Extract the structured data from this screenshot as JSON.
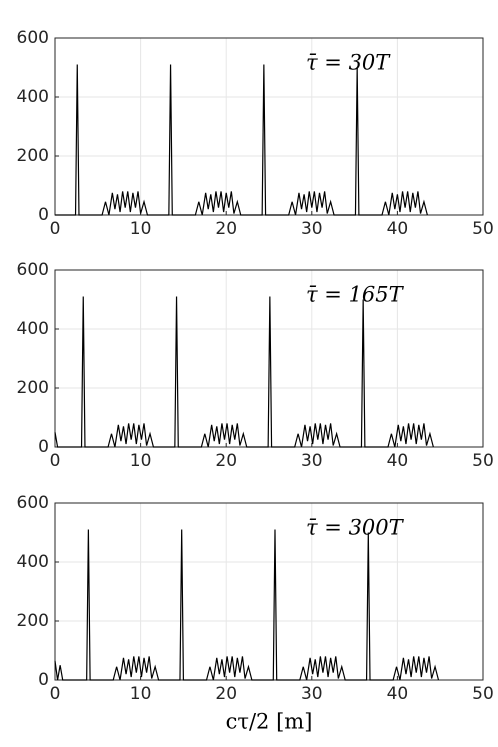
{
  "chart_data": [
    {
      "type": "line",
      "annotation": "τ̄ = 30T",
      "x": [
        0,
        2.4,
        2.6,
        2.8,
        5.5,
        5.9,
        6.3,
        6.7,
        7.0,
        7.3,
        7.6,
        7.9,
        8.2,
        8.5,
        8.8,
        9.1,
        9.4,
        9.7,
        10.0,
        10.4,
        10.8,
        13.3,
        13.5,
        13.7,
        16.4,
        16.8,
        17.2,
        17.6,
        17.9,
        18.2,
        18.5,
        18.8,
        19.1,
        19.4,
        19.7,
        20.0,
        20.3,
        20.6,
        20.9,
        21.3,
        21.7,
        24.2,
        24.4,
        24.6,
        27.3,
        27.7,
        28.1,
        28.5,
        28.8,
        29.1,
        29.4,
        29.7,
        30.0,
        30.3,
        30.6,
        30.9,
        31.2,
        31.5,
        31.8,
        32.2,
        32.6,
        35.1,
        35.3,
        35.5,
        38.2,
        38.6,
        39.0,
        39.4,
        39.7,
        40.0,
        40.3,
        40.6,
        40.9,
        41.2,
        41.5,
        41.8,
        42.1,
        42.4,
        42.7,
        43.1,
        43.5
      ],
      "values": [
        0,
        0,
        510,
        0,
        0,
        45,
        0,
        75,
        20,
        70,
        10,
        80,
        25,
        80,
        10,
        75,
        25,
        80,
        5,
        45,
        0,
        0,
        510,
        0,
        0,
        45,
        0,
        75,
        20,
        70,
        10,
        80,
        25,
        80,
        10,
        75,
        25,
        80,
        5,
        45,
        0,
        0,
        510,
        0,
        0,
        45,
        0,
        75,
        20,
        70,
        10,
        80,
        25,
        80,
        10,
        75,
        25,
        80,
        5,
        45,
        0,
        0,
        500,
        0,
        0,
        45,
        0,
        75,
        20,
        70,
        10,
        80,
        25,
        80,
        10,
        75,
        25,
        80,
        5,
        45,
        0
      ],
      "color": "#000000",
      "xlim": [
        0,
        50
      ],
      "ylim": [
        0,
        600
      ],
      "xticks": [
        0,
        10,
        20,
        30,
        40,
        50
      ],
      "yticks": [
        0,
        200,
        400,
        600
      ],
      "grid": true
    },
    {
      "type": "line",
      "annotation": "τ̄ = 165T",
      "x": [
        0,
        0.3,
        3.1,
        3.3,
        3.5,
        6.2,
        6.6,
        7.0,
        7.4,
        7.7,
        8.0,
        8.3,
        8.6,
        8.9,
        9.2,
        9.5,
        9.8,
        10.1,
        10.4,
        10.7,
        11.1,
        11.5,
        14.0,
        14.2,
        14.4,
        17.1,
        17.5,
        17.9,
        18.3,
        18.6,
        18.9,
        19.2,
        19.5,
        19.8,
        20.1,
        20.4,
        20.7,
        21.0,
        21.3,
        21.6,
        22.0,
        22.4,
        24.9,
        25.1,
        25.3,
        28.0,
        28.4,
        28.8,
        29.2,
        29.5,
        29.8,
        30.1,
        30.4,
        30.7,
        31.0,
        31.3,
        31.6,
        31.9,
        32.2,
        32.5,
        32.9,
        33.3,
        35.8,
        36.0,
        36.2,
        38.9,
        39.3,
        39.7,
        40.1,
        40.4,
        40.7,
        41.0,
        41.3,
        41.6,
        41.9,
        42.2,
        42.5,
        42.8,
        43.1,
        43.4,
        43.8,
        44.2
      ],
      "values": [
        50,
        0,
        0,
        510,
        0,
        0,
        45,
        0,
        75,
        20,
        70,
        10,
        80,
        25,
        80,
        10,
        75,
        25,
        80,
        5,
        45,
        0,
        0,
        510,
        0,
        0,
        45,
        0,
        75,
        20,
        70,
        10,
        80,
        25,
        80,
        10,
        75,
        25,
        80,
        5,
        45,
        0,
        0,
        510,
        0,
        0,
        45,
        0,
        75,
        20,
        70,
        10,
        80,
        25,
        80,
        10,
        75,
        25,
        80,
        5,
        45,
        0,
        0,
        500,
        0,
        0,
        45,
        0,
        75,
        20,
        70,
        10,
        80,
        25,
        80,
        10,
        75,
        25,
        80,
        5,
        45,
        0
      ],
      "color": "#000000",
      "xlim": [
        0,
        50
      ],
      "ylim": [
        0,
        600
      ],
      "xticks": [
        0,
        10,
        20,
        30,
        40,
        50
      ],
      "yticks": [
        0,
        200,
        400,
        600
      ],
      "grid": true
    },
    {
      "type": "line",
      "annotation": "τ̄ = 300T",
      "xlabel": "cτ/2 [m]",
      "x": [
        0,
        0.3,
        0.6,
        0.9,
        3.7,
        3.9,
        4.1,
        6.8,
        7.2,
        7.6,
        8.0,
        8.3,
        8.6,
        8.9,
        9.2,
        9.5,
        9.8,
        10.1,
        10.4,
        10.7,
        11.0,
        11.3,
        11.7,
        12.1,
        14.6,
        14.8,
        15.0,
        17.7,
        18.1,
        18.5,
        18.9,
        19.2,
        19.5,
        19.8,
        20.1,
        20.4,
        20.7,
        21.0,
        21.3,
        21.6,
        21.9,
        22.2,
        22.6,
        23.0,
        25.5,
        25.7,
        25.9,
        28.6,
        29.0,
        29.4,
        29.8,
        30.1,
        30.4,
        30.7,
        31.0,
        31.3,
        31.6,
        31.9,
        32.2,
        32.5,
        32.8,
        33.1,
        33.5,
        33.9,
        36.4,
        36.6,
        36.8,
        39.5,
        39.9,
        40.3,
        40.7,
        41.0,
        41.3,
        41.6,
        41.9,
        42.2,
        42.5,
        42.8,
        43.1,
        43.4,
        43.7,
        44.0,
        44.4,
        44.8
      ],
      "values": [
        65,
        0,
        50,
        0,
        0,
        510,
        0,
        0,
        45,
        0,
        75,
        20,
        70,
        10,
        80,
        25,
        80,
        10,
        75,
        25,
        80,
        5,
        45,
        0,
        0,
        510,
        0,
        0,
        45,
        0,
        75,
        20,
        70,
        10,
        80,
        25,
        80,
        10,
        75,
        25,
        80,
        5,
        45,
        0,
        0,
        510,
        0,
        0,
        45,
        0,
        75,
        20,
        70,
        10,
        80,
        25,
        80,
        10,
        75,
        25,
        80,
        5,
        45,
        0,
        0,
        500,
        0,
        0,
        45,
        0,
        75,
        20,
        70,
        10,
        80,
        25,
        80,
        10,
        75,
        25,
        80,
        5,
        45,
        0
      ],
      "color": "#000000",
      "xlim": [
        0,
        50
      ],
      "ylim": [
        0,
        600
      ],
      "xticks": [
        0,
        10,
        20,
        30,
        40,
        50
      ],
      "yticks": [
        0,
        200,
        400,
        600
      ],
      "grid": true
    }
  ]
}
